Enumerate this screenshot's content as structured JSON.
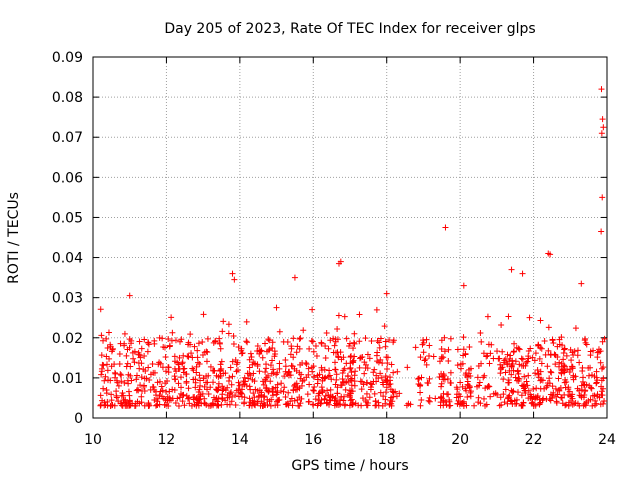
{
  "chart_data": {
    "type": "scatter",
    "title": "Day 205 of 2023, Rate Of TEC Index for receiver glps",
    "xlabel": "GPS time / hours",
    "ylabel": "ROTI / TECUs",
    "xlim": [
      10,
      24
    ],
    "ylim": [
      0,
      0.09
    ],
    "xticks": [
      10,
      12,
      14,
      16,
      18,
      20,
      22,
      24
    ],
    "yticks": [
      0,
      0.01,
      0.02,
      0.03,
      0.04,
      0.05,
      0.06,
      0.07,
      0.08,
      0.09
    ],
    "xtick_labels": [
      "10",
      "12",
      "14",
      "16",
      "18",
      "20",
      "22",
      "24"
    ],
    "ytick_labels": [
      "0",
      "0.01",
      "0.02",
      "0.03",
      "0.04",
      "0.05",
      "0.06",
      "0.07",
      "0.08",
      "0.09"
    ],
    "grid": true,
    "marker": "+",
    "marker_color": "#ff0000",
    "series": [
      {
        "name": "ROTI",
        "notable_points": [
          {
            "x": 13.8,
            "y": 0.036
          },
          {
            "x": 13.85,
            "y": 0.0345
          },
          {
            "x": 16.7,
            "y": 0.0385
          },
          {
            "x": 16.75,
            "y": 0.039
          },
          {
            "x": 19.6,
            "y": 0.0475
          },
          {
            "x": 20.1,
            "y": 0.033
          },
          {
            "x": 21.4,
            "y": 0.037
          },
          {
            "x": 21.7,
            "y": 0.036
          },
          {
            "x": 22.4,
            "y": 0.041
          },
          {
            "x": 22.45,
            "y": 0.0408
          },
          {
            "x": 23.3,
            "y": 0.0335
          },
          {
            "x": 23.85,
            "y": 0.082
          },
          {
            "x": 23.88,
            "y": 0.0745
          },
          {
            "x": 23.9,
            "y": 0.0725
          },
          {
            "x": 23.86,
            "y": 0.071
          },
          {
            "x": 23.87,
            "y": 0.055
          },
          {
            "x": 23.84,
            "y": 0.0465
          },
          {
            "x": 15.5,
            "y": 0.035
          },
          {
            "x": 18.0,
            "y": 0.031
          },
          {
            "x": 11.0,
            "y": 0.0305
          }
        ],
        "band": {
          "y_typical_min": 0.003,
          "y_typical_max": 0.02
        }
      }
    ]
  }
}
